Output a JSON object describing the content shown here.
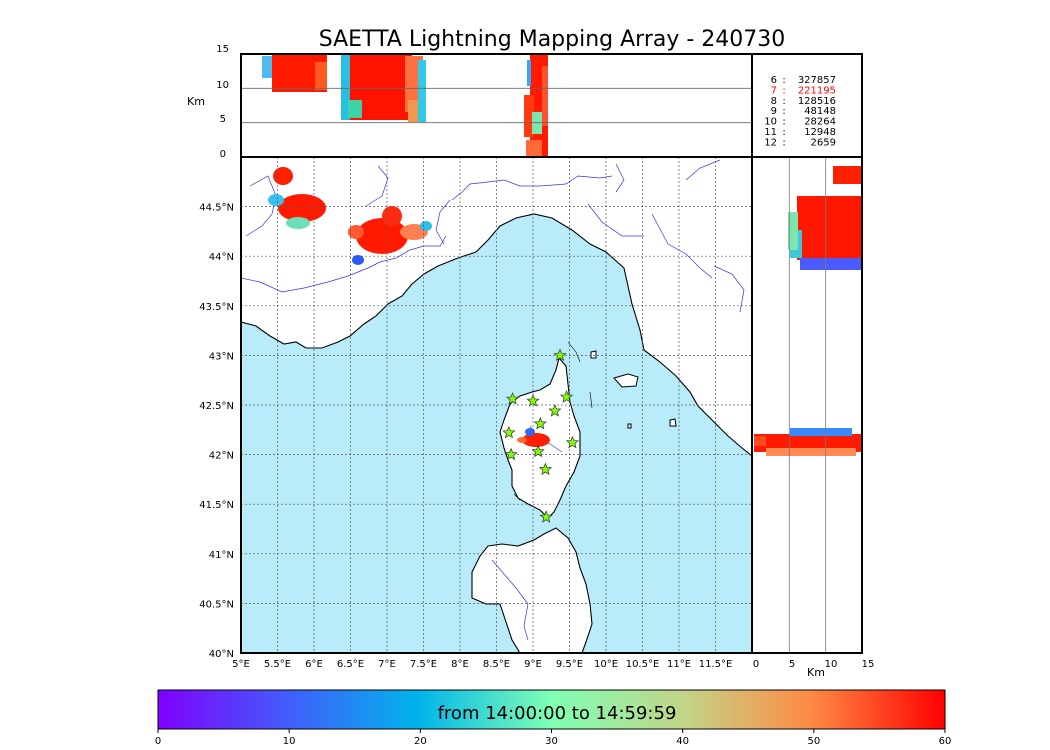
{
  "title": "SAETTA Lightning Mapping Array - 240730",
  "time_range": "from 14:00:00 to 14:59:59",
  "colors": {
    "sea": "#b8ecfb",
    "land": "#ffffff",
    "coast": "#000000",
    "river": "#3333ee",
    "station": "#7fff00"
  },
  "chart_data": {
    "type": "scatter",
    "title": "SAETTA Lightning Mapping Array - 240730",
    "grid": true,
    "map": {
      "x_range": [
        5,
        12
      ],
      "y_range": [
        40,
        45
      ],
      "x_ticks": [
        5,
        5.5,
        6,
        6.5,
        7,
        7.5,
        8,
        8.5,
        9,
        9.5,
        10,
        10.5,
        11,
        11.5
      ],
      "x_tick_labels": [
        "5°E",
        "5.5°E",
        "6°E",
        "6.5°E",
        "7°E",
        "7.5°E",
        "8°E",
        "8.5°E",
        "9°E",
        "9.5°E",
        "10°E",
        "10.5°E",
        "11°E",
        "11.5°E"
      ],
      "y_ticks": [
        40,
        40.5,
        41,
        41.5,
        42,
        42.5,
        43,
        43.5,
        44,
        44.5
      ],
      "y_tick_labels": [
        "40°N",
        "40.5°N",
        "41°N",
        "41.5°N",
        "42°N",
        "42.5°N",
        "43°N",
        "43.5°N",
        "44°N",
        "44.5°N"
      ]
    },
    "alt_panel": {
      "ylabel": "Km",
      "y_range": [
        0,
        15
      ],
      "y_ticks": [
        0,
        5,
        10,
        15
      ],
      "y_tick_labels": [
        "0",
        "5",
        "10",
        "15"
      ]
    },
    "side_panel": {
      "xlabel": "Km",
      "x_range": [
        0,
        15
      ],
      "x_ticks": [
        0,
        5,
        10,
        15
      ],
      "x_tick_labels": [
        "0",
        "5",
        "10",
        "15"
      ]
    },
    "colorbar": {
      "range": [
        0,
        60
      ],
      "ticks": [
        0,
        10,
        20,
        30,
        40,
        50,
        60
      ],
      "tick_labels": [
        "0",
        "10",
        "20",
        "30",
        "40",
        "50",
        "60"
      ],
      "label": "from 14:00:00 to 14:59:59",
      "colormap": "rainbow"
    },
    "station_counts": [
      {
        "stations": "6",
        "count": "327857",
        "color": "#000000"
      },
      {
        "stations": "7",
        "count": "221195",
        "color": "#ff0000"
      },
      {
        "stations": "8",
        "count": "128516",
        "color": "#000000"
      },
      {
        "stations": "9",
        "count": "48148",
        "color": "#000000"
      },
      {
        "stations": "10",
        "count": "28264",
        "color": "#000000"
      },
      {
        "stations": "11",
        "count": "12948",
        "color": "#000000"
      },
      {
        "stations": "12",
        "count": "2659",
        "color": "#000000"
      }
    ],
    "stations": [
      {
        "lon": 9.37,
        "lat": 43.0
      },
      {
        "lon": 8.72,
        "lat": 42.56
      },
      {
        "lon": 9.0,
        "lat": 42.54
      },
      {
        "lon": 9.46,
        "lat": 42.58
      },
      {
        "lon": 9.3,
        "lat": 42.44
      },
      {
        "lon": 9.1,
        "lat": 42.31
      },
      {
        "lon": 8.67,
        "lat": 42.22
      },
      {
        "lon": 9.54,
        "lat": 42.12
      },
      {
        "lon": 9.07,
        "lat": 42.03
      },
      {
        "lon": 8.7,
        "lat": 42.0
      },
      {
        "lon": 9.17,
        "lat": 41.85
      },
      {
        "lon": 9.18,
        "lat": 41.37
      }
    ],
    "storm_cells": [
      {
        "lon": 5.55,
        "lat": 44.82,
        "rlon": 0.12,
        "rlat": 0.08,
        "time": 45
      },
      {
        "lon": 5.7,
        "lat": 44.48,
        "rlon": 0.3,
        "rlat": 0.15,
        "time": 54
      },
      {
        "lon": 6.9,
        "lat": 44.15,
        "rlon": 0.4,
        "rlat": 0.17,
        "time": 55
      },
      {
        "lon": 7.05,
        "lat": 44.38,
        "rlon": 0.15,
        "rlat": 0.11,
        "time": 58
      },
      {
        "lon": 9.07,
        "lat": 42.16,
        "rlon": 0.16,
        "rlat": 0.07,
        "time": 58
      }
    ]
  }
}
